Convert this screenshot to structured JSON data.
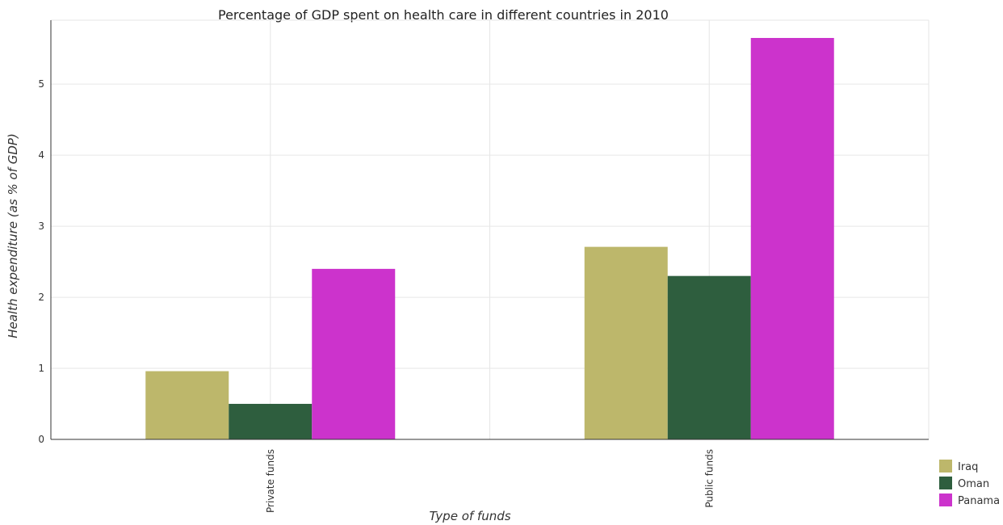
{
  "chart_data": {
    "type": "bar",
    "title": "Percentage of GDP spent on health care in different countries in 2010",
    "xlabel": "Type of funds",
    "ylabel": "Health expenditure (as % of GDP)",
    "categories": [
      "Private funds",
      "Public funds"
    ],
    "series": [
      {
        "name": "Iraq",
        "color": "#bdb76b",
        "values": [
          0.96,
          2.71
        ]
      },
      {
        "name": "Oman",
        "color": "#2e5e3e",
        "values": [
          0.5,
          2.3
        ]
      },
      {
        "name": "Panama",
        "color": "#cc33cc",
        "values": [
          2.4,
          5.65
        ]
      }
    ],
    "ylim": [
      0,
      5.9
    ],
    "yticks": [
      0,
      1,
      2,
      3,
      4,
      5
    ],
    "grid": true,
    "legend_position": "bottom-right"
  }
}
